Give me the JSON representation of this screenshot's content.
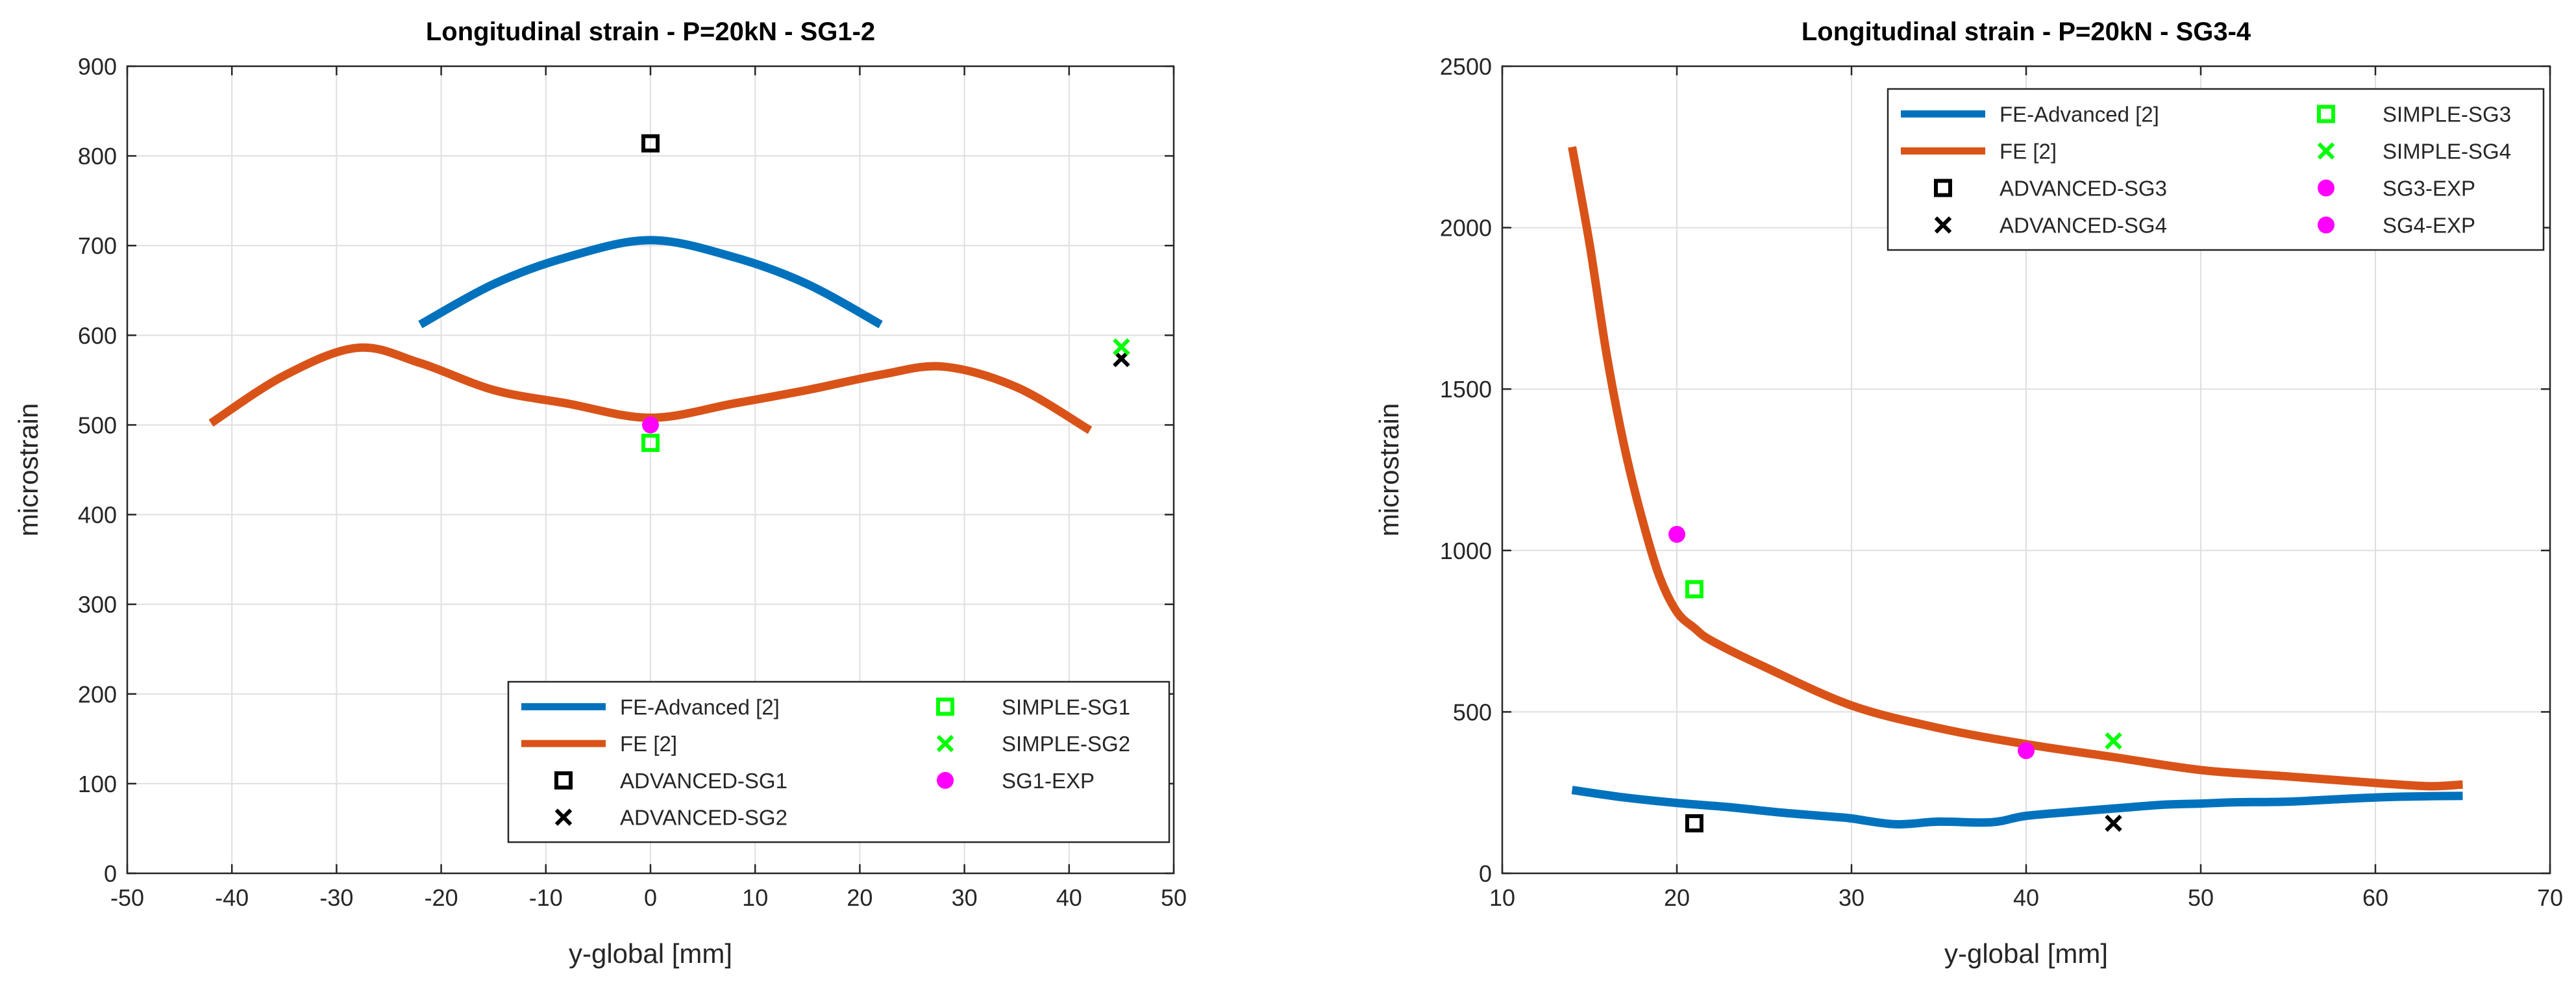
{
  "colors": {
    "fe_advanced": "#0072BD",
    "fe": "#D95319",
    "advanced": "#000000",
    "simple": "#00FF00",
    "exp": "#FF00FF",
    "grid": "#DFDFDF",
    "axis": "#262626"
  },
  "chart_data": [
    {
      "type": "line",
      "title": "Longitudinal strain - P=20kN - SG1-2",
      "xlabel": "y-global [mm]",
      "ylabel": "microstrain",
      "xlim": [
        -50,
        50
      ],
      "ylim": [
        0,
        900
      ],
      "xticks": [
        -50,
        -40,
        -30,
        -20,
        -10,
        0,
        10,
        20,
        30,
        40,
        50
      ],
      "yticks": [
        0,
        100,
        200,
        300,
        400,
        500,
        600,
        700,
        800,
        900
      ],
      "xtick_labels": [
        "-50",
        "-40",
        "-30",
        "-20",
        "-10",
        "0",
        "10",
        "20",
        "30",
        "40",
        "50"
      ],
      "ytick_labels": [
        "0",
        "100",
        "200",
        "300",
        "400",
        "500",
        "600",
        "700",
        "800",
        "900"
      ],
      "grid": true,
      "legend_position": "bottom-right",
      "legend_entries": [
        {
          "label": "FE-Advanced [2]",
          "kind": "line",
          "color_key": "fe_advanced"
        },
        {
          "label": "FE [2]",
          "kind": "line",
          "color_key": "fe"
        },
        {
          "label": "ADVANCED-SG1",
          "kind": "square",
          "color_key": "advanced"
        },
        {
          "label": "ADVANCED-SG2",
          "kind": "cross",
          "color_key": "advanced"
        },
        {
          "label": "SIMPLE-SG1",
          "kind": "square",
          "color_key": "simple"
        },
        {
          "label": "SIMPLE-SG2",
          "kind": "cross",
          "color_key": "simple"
        },
        {
          "label": "SG1-EXP",
          "kind": "circle",
          "color_key": "exp"
        }
      ],
      "series": [
        {
          "name": "FE-Advanced [2]",
          "kind": "line",
          "color_key": "fe_advanced",
          "x": [
            -22,
            -15,
            -8,
            0,
            8,
            15,
            22
          ],
          "y": [
            612,
            657,
            687,
            706,
            687,
            657,
            612
          ]
        },
        {
          "name": "FE [2]",
          "kind": "line",
          "color_key": "fe",
          "x": [
            -42,
            -35,
            -28,
            -22,
            -15,
            -8,
            0,
            8,
            15,
            22,
            28,
            35,
            42
          ],
          "y": [
            502,
            555,
            586,
            569,
            539,
            524,
            508,
            524,
            539,
            556,
            565,
            542,
            494
          ]
        },
        {
          "name": "ADVANCED-SG1",
          "kind": "square",
          "color_key": "advanced",
          "x": [
            0
          ],
          "y": [
            814
          ]
        },
        {
          "name": "ADVANCED-SG2",
          "kind": "cross",
          "color_key": "advanced",
          "x": [
            45
          ],
          "y": [
            574
          ]
        },
        {
          "name": "SIMPLE-SG1",
          "kind": "square",
          "color_key": "simple",
          "x": [
            0
          ],
          "y": [
            480
          ]
        },
        {
          "name": "SIMPLE-SG2",
          "kind": "cross",
          "color_key": "simple",
          "x": [
            45
          ],
          "y": [
            587
          ]
        },
        {
          "name": "SG1-EXP",
          "kind": "circle",
          "color_key": "exp",
          "x": [
            0
          ],
          "y": [
            500
          ]
        }
      ]
    },
    {
      "type": "line",
      "title": "Longitudinal strain - P=20kN - SG3-4",
      "xlabel": "y-global [mm]",
      "ylabel": "microstrain",
      "xlim": [
        10,
        70
      ],
      "ylim": [
        0,
        2500
      ],
      "xticks": [
        10,
        20,
        30,
        40,
        50,
        60,
        70
      ],
      "yticks": [
        0,
        500,
        1000,
        1500,
        2000,
        2500
      ],
      "xtick_labels": [
        "10",
        "20",
        "30",
        "40",
        "50",
        "60",
        "70"
      ],
      "ytick_labels": [
        "0",
        "500",
        "1000",
        "1500",
        "2000",
        "2500"
      ],
      "grid": true,
      "legend_position": "top-right",
      "legend_entries": [
        {
          "label": "FE-Advanced [2]",
          "kind": "line",
          "color_key": "fe_advanced"
        },
        {
          "label": "FE [2]",
          "kind": "line",
          "color_key": "fe"
        },
        {
          "label": "ADVANCED-SG3",
          "kind": "square",
          "color_key": "advanced"
        },
        {
          "label": "ADVANCED-SG4",
          "kind": "cross",
          "color_key": "advanced"
        },
        {
          "label": "SIMPLE-SG3",
          "kind": "square",
          "color_key": "simple"
        },
        {
          "label": "SIMPLE-SG4",
          "kind": "cross",
          "color_key": "simple"
        },
        {
          "label": "SG3-EXP",
          "kind": "circle",
          "color_key": "exp"
        },
        {
          "label": "SG4-EXP",
          "kind": "circle",
          "color_key": "exp"
        }
      ],
      "series": [
        {
          "name": "FE-Advanced [2]",
          "kind": "line",
          "color_key": "fe_advanced",
          "x": [
            14,
            17,
            20,
            23,
            26,
            29,
            30,
            32.5,
            35,
            38,
            40,
            43,
            46,
            48,
            50,
            52,
            55,
            58,
            60,
            62,
            65
          ],
          "y": [
            258,
            235,
            218,
            205,
            188,
            175,
            170,
            152,
            160,
            158,
            178,
            192,
            205,
            213,
            216,
            220,
            222,
            230,
            235,
            238,
            240
          ]
        },
        {
          "name": "FE [2]",
          "kind": "line",
          "color_key": "fe",
          "x": [
            14,
            15,
            16,
            17,
            18,
            19,
            20,
            21,
            22,
            25,
            30,
            35,
            40,
            45,
            50,
            55,
            60,
            63,
            65
          ],
          "y": [
            2250,
            1950,
            1600,
            1320,
            1100,
            920,
            810,
            760,
            720,
            640,
            520,
            450,
            400,
            360,
            320,
            300,
            280,
            270,
            275
          ]
        },
        {
          "name": "ADVANCED-SG3",
          "kind": "square",
          "color_key": "advanced",
          "x": [
            21
          ],
          "y": [
            155
          ]
        },
        {
          "name": "ADVANCED-SG4",
          "kind": "cross",
          "color_key": "advanced",
          "x": [
            45
          ],
          "y": [
            155
          ]
        },
        {
          "name": "SIMPLE-SG3",
          "kind": "square",
          "color_key": "simple",
          "x": [
            21
          ],
          "y": [
            880
          ]
        },
        {
          "name": "SIMPLE-SG4",
          "kind": "cross",
          "color_key": "simple",
          "x": [
            45
          ],
          "y": [
            410
          ]
        },
        {
          "name": "SG3-EXP",
          "kind": "circle",
          "color_key": "exp",
          "x": [
            20
          ],
          "y": [
            1050
          ]
        },
        {
          "name": "SG4-EXP",
          "kind": "circle",
          "color_key": "exp",
          "x": [
            40
          ],
          "y": [
            380
          ]
        }
      ]
    }
  ]
}
